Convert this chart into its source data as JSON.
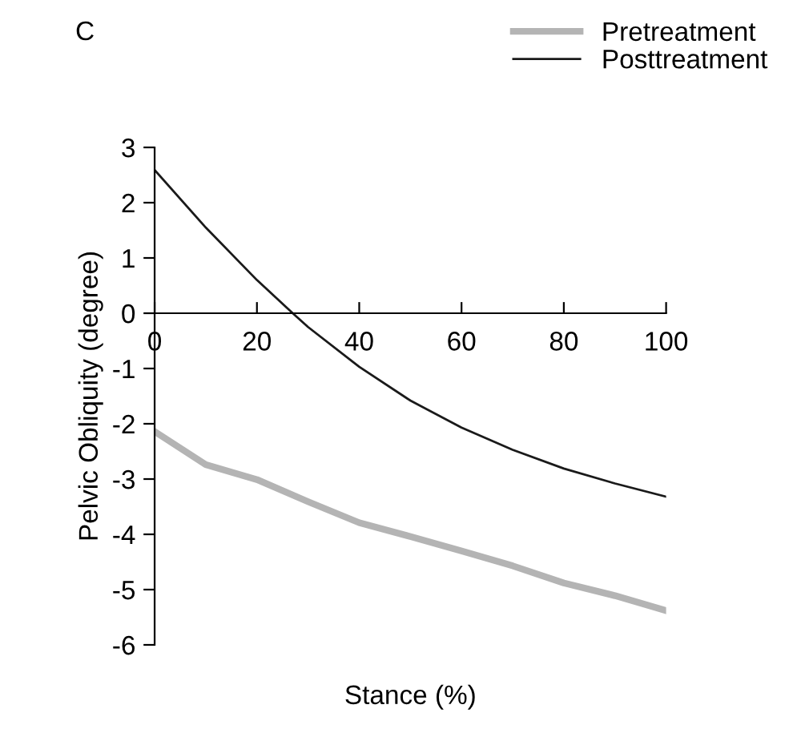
{
  "chart_data": {
    "type": "line",
    "title": "C",
    "xlabel": "Stance (%)",
    "ylabel": "Pelvic Obliquity (degree)",
    "series": [
      {
        "name": "Pretreatment",
        "color": "#b4b4b4",
        "x": [
          0,
          10,
          20,
          30,
          40,
          50,
          60,
          70,
          80,
          90,
          100
        ],
        "values": [
          -2.14,
          -2.74,
          -3.01,
          -3.41,
          -3.79,
          -4.04,
          -4.3,
          -4.57,
          -4.88,
          -5.11,
          -5.38
        ]
      },
      {
        "name": "Posttreatment",
        "color": "#1a1a1a",
        "x": [
          0,
          10,
          20,
          27,
          30,
          40,
          50,
          60,
          70,
          80,
          90,
          100
        ],
        "values": [
          2.59,
          1.55,
          0.6,
          0.0,
          -0.25,
          -0.97,
          -1.58,
          -2.07,
          -2.47,
          -2.81,
          -3.08,
          -3.32
        ]
      }
    ],
    "xlim": [
      0,
      100
    ],
    "xticks": [
      0,
      20,
      40,
      60,
      80,
      100
    ],
    "ylim": [
      -6,
      3
    ],
    "yticks": [
      -6,
      -5,
      -4,
      -3,
      -2,
      -1,
      0,
      1,
      2,
      3
    ],
    "grid": false,
    "legend": "top right",
    "marker": "none",
    "line_style": "solid"
  }
}
